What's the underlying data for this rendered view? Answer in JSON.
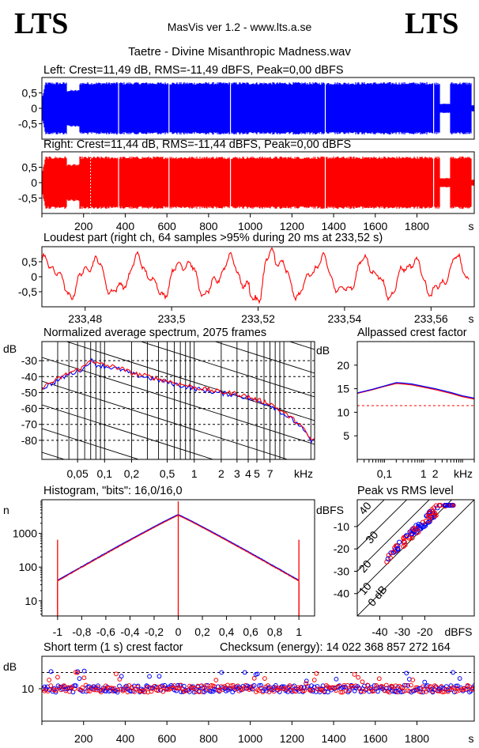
{
  "header": {
    "logo_left": "LTS",
    "logo_right": "LTS",
    "app_title": "MasVis ver 1.2 - www.lts.a.se",
    "file_title": "Taetre - Divine Misanthropic Madness.wav"
  },
  "colors": {
    "left": "#0000ff",
    "right": "#ff0000",
    "grid": "#000000"
  },
  "panels": {
    "left_wave": {
      "title": "Left: Crest=11,49 dB, RMS=-11,49 dBFS, Peak=0,00 dBFS",
      "yticks": [
        "0,5",
        "0",
        "-0,5"
      ]
    },
    "right_wave": {
      "title": "Right: Crest=11,44 dB, RMS=-11,44 dBFS, Peak=0,00 dBFS",
      "yticks": [
        "0,5",
        "0",
        "-0,5"
      ],
      "xticks": [
        "200",
        "400",
        "600",
        "800",
        "1000",
        "1200",
        "1400",
        "1600",
        "1800"
      ],
      "xunit": "s"
    },
    "loudest": {
      "title": "Loudest part (right ch, 64 samples >95% during 20 ms at 233,52 s)",
      "yticks": [
        "0,5",
        "0",
        "-0,5"
      ],
      "xticks": [
        "233,48",
        "233,5",
        "233,52",
        "233,54",
        "233,56"
      ],
      "xunit": "s"
    },
    "spectrum": {
      "title": "Normalized average spectrum, 2075 frames",
      "yunit": "dB",
      "yticks": [
        "-30",
        "-40",
        "-50",
        "-60",
        "-70",
        "-80"
      ],
      "xticks": [
        "0,05",
        "0,1",
        "0,2",
        "0,5",
        "1",
        "2",
        "3",
        "4",
        "5",
        "7"
      ],
      "xunit": "kHz"
    },
    "allpass": {
      "title": "Allpassed crest factor",
      "yunit": "dB",
      "yticks": [
        "20",
        "15",
        "10",
        "5"
      ],
      "xticks": [
        "0,1",
        "1",
        "2"
      ],
      "xunit": "kHz"
    },
    "histogram": {
      "title": "Histogram, \"bits\": 16,0/16,0",
      "yunit": "n",
      "yticks": [
        "1000",
        "100",
        "10"
      ],
      "xticks": [
        "-1",
        "-0,8",
        "-0,6",
        "-0,4",
        "-0,2",
        "0",
        "0,2",
        "0,4",
        "0,6",
        "0,8",
        "1"
      ]
    },
    "peak_rms": {
      "title": "Peak vs RMS level",
      "yunit": "dBFS",
      "yticks": [
        "-10",
        "-20",
        "-30",
        "-40"
      ],
      "xticks": [
        "-40",
        "-30",
        "-20"
      ],
      "xunit": "dBFS",
      "diag_labels": [
        "40",
        "30",
        "20",
        "10",
        "0 dB"
      ]
    },
    "crest": {
      "title": "Short term (1 s) crest factor",
      "checksum": "Checksum (energy):  14 022 368 857 272 164",
      "yunit": "dB",
      "yticks": [
        "10"
      ],
      "xticks": [
        "200",
        "400",
        "600",
        "800",
        "1000",
        "1200",
        "1400",
        "1600",
        "1800"
      ],
      "xunit": "s"
    }
  },
  "chart_data": [
    {
      "type": "area",
      "title": "Left: Crest=11,49 dB, RMS=-11,49 dBFS, Peak=0,00 dBFS",
      "xlabel": "",
      "ylabel": "",
      "ylim": [
        -1,
        1
      ],
      "xlim": [
        0,
        2075
      ]
    },
    {
      "type": "area",
      "title": "Right: Crest=11,44 dB, RMS=-11,44 dBFS, Peak=0,00 dBFS",
      "xlabel": "s",
      "ylim": [
        -1,
        1
      ],
      "xlim": [
        0,
        2075
      ]
    },
    {
      "type": "line",
      "title": "Loudest part (right ch, 64 samples >95% during 20 ms at 233,52 s)",
      "xlabel": "s",
      "xlim": [
        233.47,
        233.57
      ],
      "ylim": [
        -1,
        1
      ]
    },
    {
      "type": "line",
      "title": "Normalized average spectrum, 2075 frames",
      "xlabel": "kHz",
      "ylabel": "dB",
      "log_x": true,
      "ylim": [
        -90,
        -20
      ],
      "series": [
        {
          "x": [
            0.02,
            0.03,
            0.04,
            0.05,
            0.06,
            0.07,
            0.08,
            0.1,
            0.15,
            0.2,
            0.3,
            0.5,
            0.7,
            1,
            2,
            3,
            4,
            5,
            7,
            10,
            15,
            20
          ],
          "values": [
            -47,
            -42,
            -38,
            -36,
            -34,
            -29,
            -32,
            -33,
            -35,
            -38,
            -40,
            -43,
            -45,
            -47,
            -50,
            -51,
            -53,
            -55,
            -57,
            -63,
            -70,
            -80
          ]
        }
      ]
    },
    {
      "type": "line",
      "title": "Allpassed crest factor",
      "xlabel": "kHz",
      "ylabel": "dB",
      "log_x": true,
      "ylim": [
        0,
        25
      ],
      "reference": 11.4,
      "series": [
        {
          "x": [
            0.02,
            0.05,
            0.1,
            0.2,
            0.3,
            0.5,
            1,
            2,
            5,
            10,
            20
          ],
          "values": [
            14,
            14.8,
            15.5,
            16.1,
            16,
            15.8,
            15.3,
            14.8,
            14,
            13.3,
            12.8
          ]
        },
        {
          "x": [
            0.02,
            0.05,
            0.1,
            0.2,
            0.3,
            0.5,
            1,
            2,
            5,
            10,
            20
          ],
          "values": [
            14.1,
            14.9,
            15.6,
            16.3,
            16.2,
            16,
            15.5,
            15,
            14.2,
            13.5,
            13
          ]
        }
      ]
    },
    {
      "type": "line",
      "title": "Histogram, \"bits\": 16,0/16,0",
      "ylabel": "n",
      "log_y": true,
      "xlim": [
        -1.05,
        1.05
      ],
      "series": [
        {
          "x": [
            -1,
            -0.8,
            -0.6,
            -0.4,
            -0.2,
            0,
            0.2,
            0.4,
            0.6,
            0.8,
            1
          ],
          "values": [
            35,
            130,
            330,
            850,
            1800,
            3500,
            1800,
            850,
            330,
            130,
            35
          ]
        }
      ]
    },
    {
      "type": "scatter",
      "title": "Peak vs RMS level",
      "xlabel": "dBFS",
      "ylabel": "dBFS",
      "xlim": [
        -50,
        0
      ],
      "ylim": [
        -50,
        0
      ]
    },
    {
      "type": "scatter",
      "title": "Short term (1 s) crest factor",
      "xlabel": "s",
      "ylabel": "dB",
      "xlim": [
        0,
        2075
      ],
      "ylim": [
        0,
        20
      ],
      "reference": 15
    }
  ]
}
